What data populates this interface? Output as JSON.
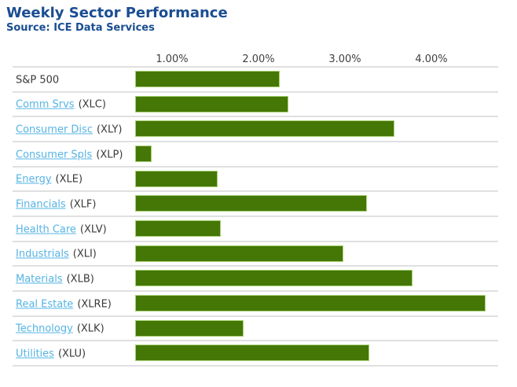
{
  "header": {
    "title": "Weekly Sector Performance",
    "source": "Source: ICE Data Services"
  },
  "colors": {
    "title_blue": "#1a4d92",
    "link_blue": "#55b4e4",
    "bar_green": "#447706",
    "bar_border_green": "#a9d074",
    "separator_gray": "#e0e0e0",
    "text_dark": "#3a3a3a",
    "axis_text": "#404040"
  },
  "chart_data": {
    "type": "bar",
    "orientation": "horizontal",
    "title": "Weekly Sector Performance",
    "source": "Source: ICE Data Services",
    "xlabel": "",
    "ylabel": "",
    "unit": "%",
    "xlim": [
      0,
      4.4
    ],
    "x_ticks": [
      1.0,
      2.0,
      3.0,
      4.0
    ],
    "x_tick_labels": [
      "1.00%",
      "2.00%",
      "3.00%",
      "4.00%"
    ],
    "grid": "horizontal row separators only, axis labels on top",
    "legend": "none",
    "bar_color": "#447706",
    "categories": [
      "S&P 500",
      "Comm Srvs (XLC)",
      "Consumer Disc (XLY)",
      "Consumer Spls (XLP)",
      "Energy (XLE)",
      "Financials (XLF)",
      "Health Care (XLV)",
      "Industrials (XLI)",
      "Materials (XLB)",
      "Real Estate (XLRE)",
      "Technology (XLK)",
      "Utilities (XLU)"
    ],
    "rows": [
      {
        "label": "S&P 500",
        "ticker": "",
        "link": false,
        "value": 1.67
      },
      {
        "label": "Comm Srvs",
        "ticker": "(XLC)",
        "link": true,
        "value": 1.77
      },
      {
        "label": "Consumer Disc",
        "ticker": "(XLY)",
        "link": true,
        "value": 3.0
      },
      {
        "label": "Consumer Spls",
        "ticker": "(XLP)",
        "link": true,
        "value": 0.19
      },
      {
        "label": "Energy",
        "ticker": "(XLE)",
        "link": true,
        "value": 0.95
      },
      {
        "label": "Financials",
        "ticker": "(XLF)",
        "link": true,
        "value": 2.68
      },
      {
        "label": "Health Care",
        "ticker": "(XLV)",
        "link": true,
        "value": 0.99
      },
      {
        "label": "Industrials",
        "ticker": "(XLI)",
        "link": true,
        "value": 2.41
      },
      {
        "label": "Materials",
        "ticker": "(XLB)",
        "link": true,
        "value": 3.21
      },
      {
        "label": "Real Estate",
        "ticker": "(XLRE)",
        "link": true,
        "value": 4.05
      },
      {
        "label": "Technology",
        "ticker": "(XLK)",
        "link": true,
        "value": 1.25
      },
      {
        "label": "Utilities",
        "ticker": "(XLU)",
        "link": true,
        "value": 2.71
      }
    ]
  }
}
